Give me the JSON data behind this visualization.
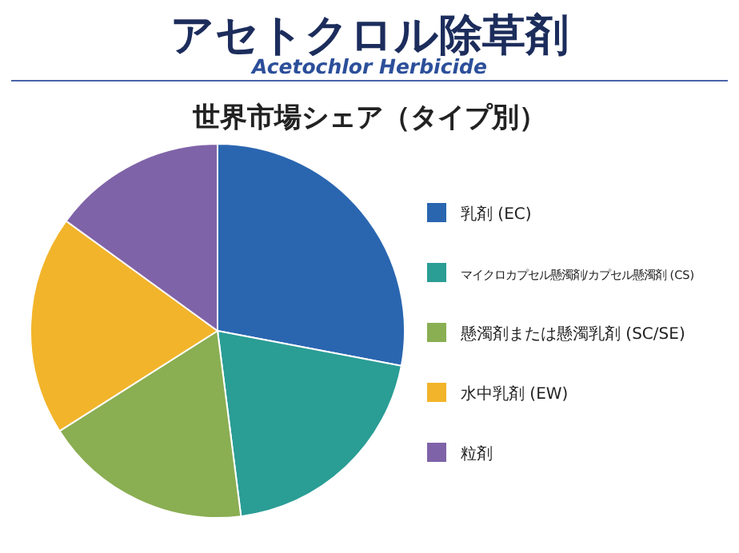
{
  "chart_data": {
    "type": "pie",
    "title": "アセトクロル除草剤",
    "subtitle": "Acetochlor Herbicide",
    "annotations": [
      "世界市場シェア（タイプ別）"
    ],
    "categories": [
      "乳剤 (EC)",
      "マイクロカプセル懸濁剤/カプセル懸濁剤 (CS)",
      "懸濁剤または懸濁乳剤 (SC/SE)",
      "水中乳剤 (EW)",
      "粒剤"
    ],
    "values": [
      28,
      20,
      18,
      19,
      15
    ],
    "colors": [
      "#2a66b0",
      "#2a9d95",
      "#8aae52",
      "#f2b42a",
      "#7f63a8"
    ],
    "legend": "right"
  }
}
